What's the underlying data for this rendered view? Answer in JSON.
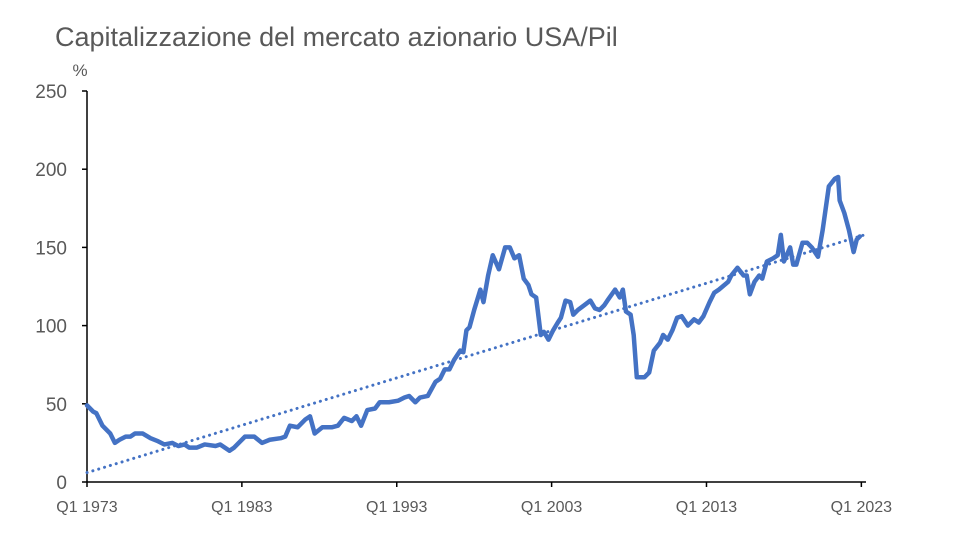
{
  "chart_data": {
    "type": "line",
    "title": "Capitalizzazione del mercato azionario USA/Pil",
    "ylabel": "%",
    "xlim": [
      1973,
      2023.3
    ],
    "xticks": [
      {
        "value": 1973,
        "label": "Q1 1973"
      },
      {
        "value": 1983,
        "label": "Q1 1983"
      },
      {
        "value": 1993,
        "label": "Q1 1993"
      },
      {
        "value": 2003,
        "label": "Q1 2003"
      },
      {
        "value": 2013,
        "label": "Q1 2013"
      },
      {
        "value": 2023,
        "label": "Q1 2023"
      }
    ],
    "ylim": [
      0,
      250
    ],
    "yticks": [
      0,
      50,
      100,
      150,
      200,
      250
    ],
    "grid": false,
    "series": [
      {
        "color": "#4472c4",
        "style": "solid",
        "x": [
          1973,
          1973.4,
          1973.6,
          1974.0,
          1974.5,
          1974.8,
          1975.1,
          1975.5,
          1975.8,
          1976.1,
          1976.6,
          1977.1,
          1977.6,
          1978.0,
          1978.5,
          1978.9,
          1979.3,
          1979.6,
          1980.1,
          1980.6,
          1981.3,
          1981.6,
          1981.9,
          1982.2,
          1982.5,
          1982.9,
          1983.2,
          1983.8,
          1984.3,
          1984.8,
          1985.5,
          1985.8,
          1986.1,
          1986.6,
          1987.1,
          1987.4,
          1987.7,
          1988.2,
          1988.8,
          1989.2,
          1989.6,
          1990.1,
          1990.4,
          1990.7,
          1991.1,
          1991.6,
          1991.9,
          1992.5,
          1993.1,
          1993.5,
          1993.8,
          1994.2,
          1994.5,
          1995.0,
          1995.5,
          1995.8,
          1996.1,
          1996.4,
          1996.7,
          1997.1,
          1997.3,
          1997.5,
          1997.7,
          1998.0,
          1998.4,
          1998.6,
          1998.9,
          1999.2,
          1999.6,
          2000.0,
          2000.3,
          2000.6,
          2000.9,
          2001.2,
          2001.5,
          2001.7,
          2002.0,
          2002.3,
          2002.5,
          2002.8,
          2003.1,
          2003.4,
          2003.6,
          2003.9,
          2004.2,
          2004.4,
          2004.7,
          2005.1,
          2005.5,
          2005.8,
          2006.1,
          2006.4,
          2006.6,
          2007.1,
          2007.4,
          2007.6,
          2007.8,
          2008.1,
          2008.3,
          2008.5,
          2009.0,
          2009.3,
          2009.6,
          2010.0,
          2010.2,
          2010.5,
          2010.8,
          2011.1,
          2011.4,
          2011.8,
          2012.2,
          2012.5,
          2012.8,
          2013.2,
          2013.5,
          2013.8,
          2014.4,
          2014.6,
          2015.0,
          2015.4,
          2015.6,
          2015.8,
          2016.1,
          2016.4,
          2016.6,
          2016.9,
          2017.3,
          2017.6,
          2017.8,
          2018.0,
          2018.4,
          2018.6,
          2018.8,
          2019.2,
          2019.5,
          2019.8,
          2020.2,
          2020.5,
          2020.9,
          2021.3,
          2021.5,
          2021.6,
          2021.9,
          2022.2,
          2022.5,
          2022.7,
          2022.9
        ],
        "values": [
          49,
          45,
          44,
          36,
          31,
          25,
          27,
          29,
          29,
          31,
          31,
          28,
          26,
          24,
          25,
          23,
          24,
          22,
          22,
          24,
          23,
          24,
          22,
          20,
          22,
          26,
          29,
          29,
          25,
          27,
          28,
          29,
          36,
          35,
          40,
          42,
          31,
          35,
          35,
          36,
          41,
          39,
          42,
          36,
          46,
          47,
          51,
          51,
          52,
          54,
          55,
          51,
          54,
          55,
          64,
          66,
          72,
          72,
          78,
          84,
          83,
          97,
          99,
          110,
          123,
          115,
          132,
          145,
          136,
          150,
          150,
          143,
          145,
          130,
          126,
          120,
          118,
          94,
          96,
          91,
          97,
          102,
          105,
          116,
          115,
          107,
          110,
          113,
          116,
          111,
          110,
          113,
          116,
          123,
          118,
          123,
          109,
          107,
          94,
          67,
          67,
          70,
          84,
          89,
          94,
          91,
          97,
          105,
          106,
          100,
          104,
          102,
          106,
          115,
          121,
          123,
          128,
          132,
          137,
          132,
          132,
          120,
          128,
          132,
          130,
          141,
          143,
          145,
          158,
          141,
          150,
          139,
          139,
          153,
          153,
          150,
          144,
          161,
          189,
          194,
          195,
          180,
          172,
          161,
          147,
          155,
          157
        ]
      },
      {
        "color": "#4472c4",
        "style": "dotted",
        "x": [
          1973,
          2023.2
        ],
        "values": [
          6,
          158
        ]
      }
    ]
  }
}
